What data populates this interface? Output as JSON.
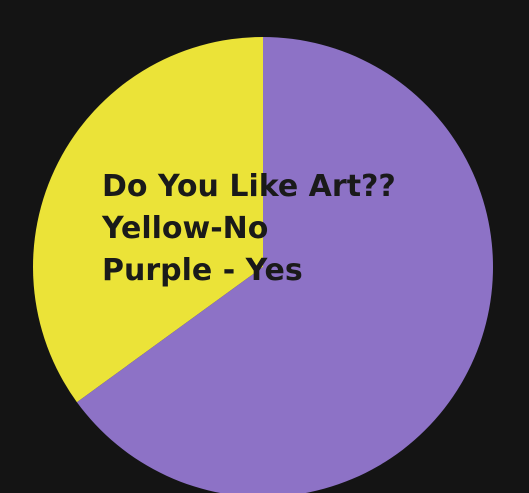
{
  "chart_data": {
    "type": "pie",
    "title": "Do You Like Art??",
    "legend": [
      "Yellow-No",
      "Purple - Yes"
    ],
    "slices": [
      {
        "label": "No",
        "value": 35,
        "color": "#ebe338"
      },
      {
        "label": "Yes",
        "value": 65,
        "color": "#8d72c6"
      }
    ],
    "start": "top",
    "direction": "counterclockwise-for-first-slice"
  },
  "colors": {
    "background": "#141414",
    "text": "#1a1a1a"
  }
}
